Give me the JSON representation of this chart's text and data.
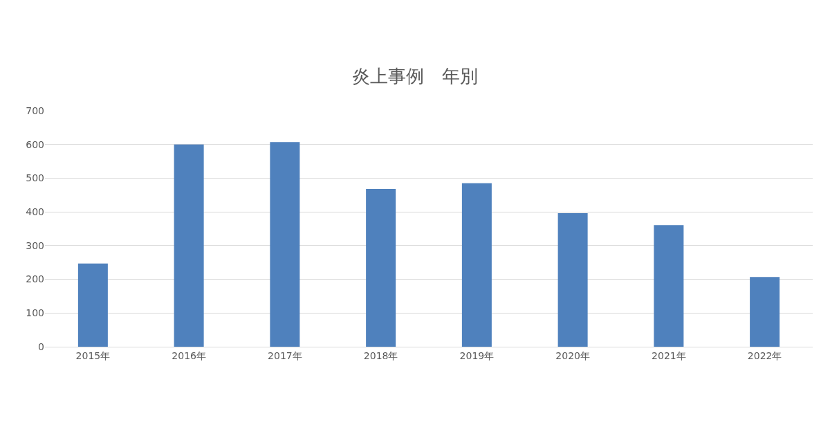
{
  "chart_data": {
    "type": "bar",
    "title": "炎上事例　年別",
    "categories": [
      "2015年",
      "2016年",
      "2017年",
      "2018年",
      "2019年",
      "2020年",
      "2021年",
      "2022年"
    ],
    "values": [
      247,
      600,
      607,
      468,
      485,
      396,
      361,
      207
    ],
    "color": "#4f81bd",
    "ylim": [
      0,
      700
    ],
    "yticks": [
      0,
      100,
      200,
      300,
      400,
      500,
      600,
      700
    ],
    "grid": "y"
  }
}
